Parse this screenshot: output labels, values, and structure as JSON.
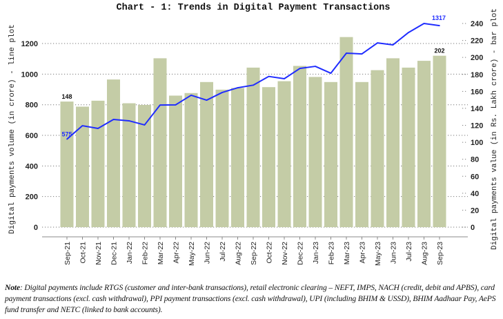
{
  "chart_data": {
    "type": "bar+line",
    "title": "Chart - 1: Trends in Digital Payment Transactions",
    "categories": [
      "Sep-21",
      "Oct-21",
      "Nov-21",
      "Dec-21",
      "Jan-22",
      "Feb-22",
      "Mar-22",
      "Apr-22",
      "May-22",
      "Jun-22",
      "Jul-22",
      "Aug-22",
      "Sep-22",
      "Oct-22",
      "Nov-22",
      "Dec-22",
      "Jan-23",
      "Feb-23",
      "Mar-23",
      "Apr-23",
      "May-23",
      "Jun-23",
      "Jul-23",
      "Aug-23",
      "Sep-23"
    ],
    "series": [
      {
        "type": "bar",
        "axis": "right",
        "color": "#c4cca6",
        "values": [
          148,
          142,
          149,
          174,
          146,
          144,
          199,
          155,
          158,
          171,
          162,
          164,
          188,
          165,
          172,
          190,
          177,
          171,
          224,
          171,
          185,
          199,
          188,
          196,
          202
        ]
      },
      {
        "type": "line",
        "axis": "left",
        "color": "#1f2cff",
        "values": [
          575,
          663,
          645,
          704,
          695,
          668,
          798,
          799,
          862,
          830,
          880,
          911,
          928,
          985,
          970,
          1037,
          1051,
          1006,
          1137,
          1132,
          1204,
          1191,
          1272,
          1331,
          1317
        ]
      }
    ],
    "data_labels": {
      "bar_first": "148",
      "bar_last": "202",
      "line_first": "575",
      "line_last": "1317"
    },
    "ylabel_left": "Digital payments volume (in crore) - line plot",
    "ylabel_right": "Digital payments value (in Rs. Lakh crore) - bar plot",
    "yticks_left": [
      "0",
      "200",
      "400",
      "600",
      "800",
      "1000",
      "1200"
    ],
    "yticks_right": [
      "0",
      "20",
      "40",
      "60",
      "80",
      "100",
      "120",
      "140",
      "160",
      "180",
      "200",
      "220",
      "240"
    ],
    "ylim_left": [
      0,
      1331
    ],
    "ylim_right": [
      0,
      240
    ],
    "grid": "horizontal dotted",
    "legend": "none"
  },
  "note": {
    "label": "Note",
    "text": ": Digital payments include RTGS (customer and inter-bank transactions), retail electronic clearing – NEFT, IMPS, NACH (credit, debit and APBS), card payment transactions (excl. cash withdrawal), PPI payment transactions (excl. cash withdrawal), UPI (including BHIM & USSD), BHIM Aadhaar Pay, AePS fund transfer and NETC (linked to bank accounts)."
  }
}
